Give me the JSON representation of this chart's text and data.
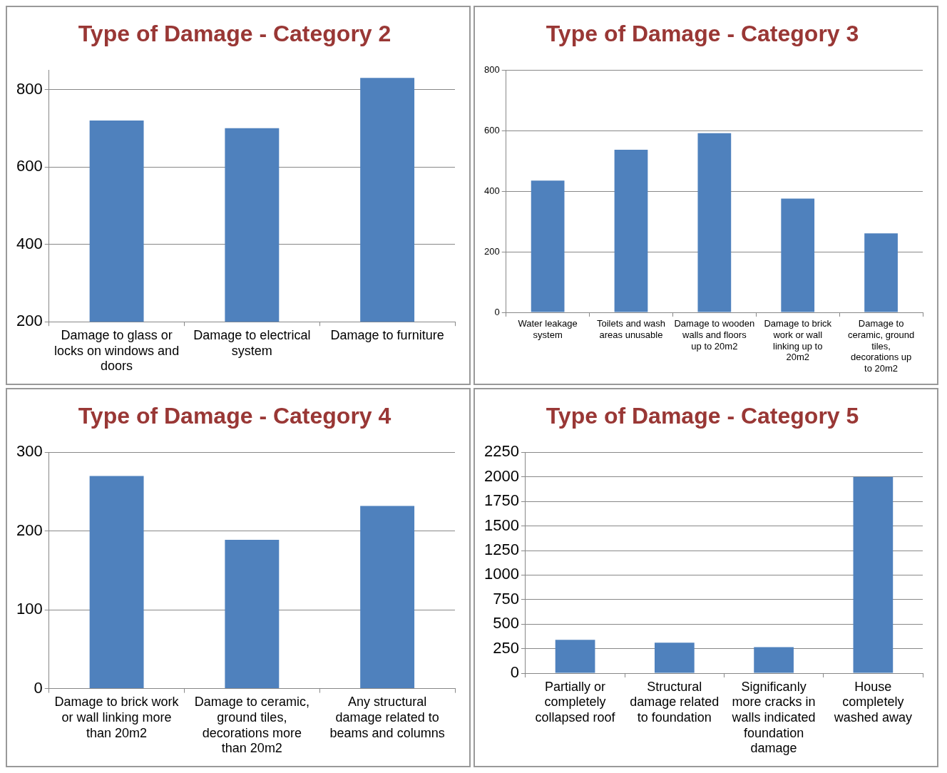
{
  "chart_data": [
    {
      "type": "bar",
      "title": "Type of Damage - Category 2",
      "categories": [
        "Damage to glass or locks on windows and doors",
        "Damage to electrical system",
        "Damage to furniture"
      ],
      "values": [
        720,
        700,
        830
      ],
      "color": "#4f81bd",
      "ylim": [
        200,
        850
      ],
      "yticks": [
        200,
        400,
        600,
        800
      ],
      "grid": "y"
    },
    {
      "type": "bar",
      "title": "Type of Damage - Category 3",
      "categories": [
        "Water leakage system",
        "Toilets and wash areas unusable",
        "Damage to wooden walls and floors up to 20m2",
        "Damage to brick work or wall linking up to 20m2",
        "Damage to ceramic, ground tiles, decorations up to 20m2"
      ],
      "values": [
        435,
        537,
        592,
        376,
        261
      ],
      "color": "#4f81bd",
      "ylim": [
        0,
        800
      ],
      "yticks": [
        0,
        200,
        400,
        600,
        800
      ],
      "grid": "y"
    },
    {
      "type": "bar",
      "title": "Type of Damage - Category 4",
      "categories": [
        "Damage to brick work or wall linking more than 20m2",
        "Damage to ceramic, ground tiles, decorations more than 20m2",
        "Any structural damage related to beams and columns"
      ],
      "values": [
        270,
        189,
        232
      ],
      "color": "#4f81bd",
      "ylim": [
        0,
        300
      ],
      "yticks": [
        0,
        100,
        200,
        300
      ],
      "grid": "y"
    },
    {
      "type": "bar",
      "title": "Type of Damage - Category 5",
      "categories": [
        "Partially or completely collapsed roof",
        "Structural damage related to foundation",
        "Significanly more cracks in walls indicated foundation damage",
        "House completely washed away"
      ],
      "values": [
        340,
        310,
        265,
        2000
      ],
      "color": "#4f81bd",
      "ylim": [
        0,
        2250
      ],
      "yticks": [
        0,
        250,
        500,
        750,
        1000,
        1250,
        1500,
        1750,
        2000,
        2250
      ],
      "grid": "y"
    }
  ]
}
